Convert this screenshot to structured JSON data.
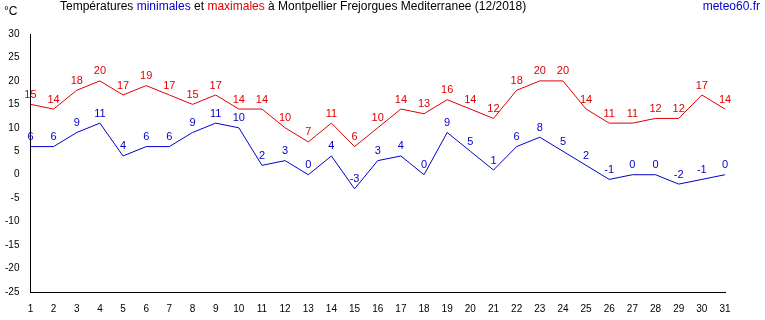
{
  "chart_data": {
    "type": "line",
    "title": "Températures minimales et maximales à Montpellier Frejorgues Mediterranee (12/2018)",
    "ylabel": "°C",
    "annotations": [
      {
        "text": "meteo60.fr"
      }
    ],
    "categories": [
      "1",
      "2",
      "3",
      "4",
      "5",
      "6",
      "7",
      "8",
      "9",
      "10",
      "11",
      "12",
      "13",
      "14",
      "15",
      "16",
      "17",
      "18",
      "19",
      "20",
      "21",
      "22",
      "23",
      "24",
      "25",
      "26",
      "27",
      "28",
      "29",
      "30",
      "31"
    ],
    "series": [
      {
        "name": "minimales",
        "color": "#0000cc",
        "values": [
          6,
          6,
          9,
          11,
          4,
          6,
          6,
          9,
          11,
          10,
          2,
          3,
          0,
          4,
          -3,
          3,
          4,
          0,
          9,
          5,
          1,
          6,
          8,
          5,
          2,
          -1,
          0,
          0,
          -2,
          -1,
          0
        ]
      },
      {
        "name": "maximales",
        "color": "#e00000",
        "values": [
          15,
          14,
          18,
          20,
          17,
          19,
          17,
          15,
          17,
          14,
          14,
          10,
          7,
          11,
          6,
          10,
          14,
          13,
          16,
          14,
          12,
          18,
          20,
          20,
          14,
          11,
          11,
          12,
          12,
          17,
          14
        ]
      }
    ],
    "ylim": [
      -25,
      30
    ],
    "yticks": [
      -25,
      -20,
      -15,
      -10,
      -5,
      0,
      5,
      10,
      15,
      20,
      25,
      30
    ],
    "grid": false,
    "data_labels": true
  }
}
